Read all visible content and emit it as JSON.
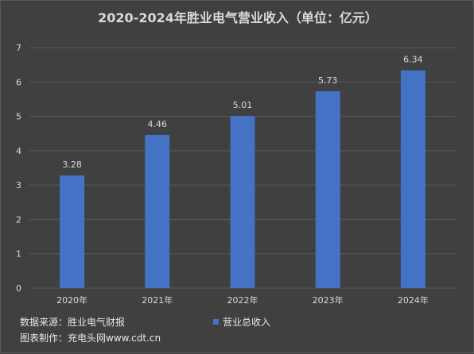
{
  "chart_data": {
    "type": "bar",
    "title": "2020-2024年胜业电气营业收入（单位：亿元）",
    "categories": [
      "2020年",
      "2021年",
      "2022年",
      "2023年",
      "2024年"
    ],
    "series": [
      {
        "name": "营业总收入",
        "values": [
          3.28,
          4.46,
          5.01,
          5.73,
          6.34
        ]
      }
    ],
    "data_labels": [
      "3.28",
      "4.46",
      "5.01",
      "5.73",
      "6.34"
    ],
    "ylim": [
      0,
      7
    ],
    "yticks": [
      0,
      1,
      2,
      3,
      4,
      5,
      6,
      7
    ],
    "grid": true,
    "legend": "bottom",
    "colors": {
      "bar": "#4472c4",
      "background": "#404040",
      "grid": "#595959",
      "text": "#d9d9d9"
    }
  },
  "footer": {
    "source": "数据来源：胜业电气财报",
    "maker": "图表制作：充电头网www.cdt.cn"
  }
}
